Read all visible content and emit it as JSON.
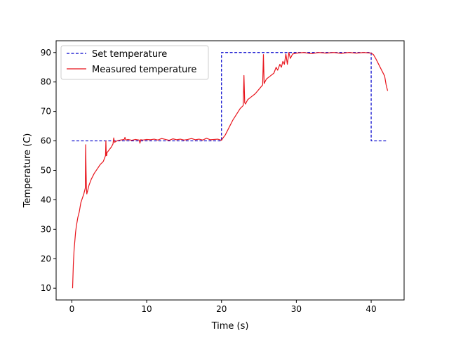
{
  "chart_data": {
    "type": "line",
    "title": "",
    "xlabel": "Time (s)",
    "ylabel": "Temperature (C)",
    "xlim": [
      -2.1,
      44.4
    ],
    "ylim": [
      6,
      94
    ],
    "xticks": [
      0,
      10,
      20,
      30,
      40
    ],
    "yticks": [
      10,
      20,
      30,
      40,
      50,
      60,
      70,
      80,
      90
    ],
    "grid": false,
    "legend_position": "top-left",
    "series": [
      {
        "name": "Set temperature",
        "color": "#0000cc",
        "style": "dashed",
        "x": [
          0,
          20,
          20,
          40,
          40,
          42.2
        ],
        "y": [
          60,
          60,
          90,
          90,
          60,
          60
        ]
      },
      {
        "name": "Measured temperature",
        "color": "#e8141c",
        "style": "solid",
        "x": [
          0.1,
          0.2,
          0.3,
          0.4,
          0.5,
          0.6,
          0.8,
          1.0,
          1.2,
          1.4,
          1.6,
          1.8,
          1.85,
          1.9,
          1.95,
          2.0,
          2.1,
          2.3,
          2.6,
          3.0,
          3.4,
          3.8,
          4.2,
          4.5,
          4.55,
          4.6,
          4.65,
          4.7,
          5.0,
          5.3,
          5.5,
          5.6,
          5.7,
          6.0,
          6.5,
          7.0,
          7.1,
          7.2,
          7.5,
          8.0,
          8.5,
          9.0,
          9.1,
          9.2,
          9.5,
          10.0,
          10.5,
          11.0,
          11.5,
          12.0,
          12.5,
          13.0,
          13.5,
          14.0,
          14.5,
          15.0,
          15.5,
          16.0,
          16.5,
          17.0,
          17.5,
          18.0,
          18.5,
          19.0,
          19.5,
          20.0,
          20.2,
          20.5,
          21.0,
          21.5,
          22.0,
          22.5,
          22.9,
          23.0,
          23.1,
          23.2,
          23.5,
          24.0,
          24.5,
          25.0,
          25.5,
          25.6,
          25.7,
          25.8,
          26.0,
          26.5,
          27.0,
          27.3,
          27.5,
          27.8,
          28.0,
          28.2,
          28.4,
          28.6,
          28.8,
          29.0,
          29.2,
          29.5,
          30.0,
          31.0,
          32.0,
          33.0,
          34.0,
          35.0,
          36.0,
          37.0,
          38.0,
          39.0,
          40.0,
          40.3,
          40.6,
          41.0,
          41.4,
          41.8,
          42.0,
          42.2
        ],
        "y": [
          10,
          18,
          23,
          26,
          29,
          31,
          34,
          36,
          39,
          40.5,
          42,
          44,
          58.7,
          50,
          44,
          42,
          43,
          45,
          47,
          49,
          50.5,
          52,
          53,
          55,
          60,
          55,
          55,
          56,
          57,
          58,
          59,
          61,
          59.5,
          60,
          60.3,
          60.5,
          61.2,
          60.3,
          60.5,
          60.2,
          60.5,
          60.3,
          59.2,
          60.4,
          60.3,
          60.5,
          60.4,
          60.6,
          60.3,
          60.8,
          60.5,
          60.2,
          60.7,
          60.4,
          60.6,
          60.3,
          60.5,
          60.8,
          60.4,
          60.6,
          60.3,
          60.9,
          60.4,
          60.5,
          60.6,
          60.2,
          61,
          62,
          64.5,
          67,
          69,
          71,
          72,
          82.2,
          73,
          72.5,
          74,
          75,
          76,
          77.5,
          79,
          89.3,
          79.5,
          80,
          81,
          82,
          83,
          85,
          84,
          86,
          85,
          87,
          86,
          89.5,
          86,
          90,
          88,
          89.5,
          89.8,
          90,
          89.6,
          90,
          89.8,
          90,
          89.7,
          90,
          89.8,
          90,
          89.8,
          89.3,
          88,
          86,
          84,
          82,
          79,
          77
        ]
      }
    ]
  }
}
